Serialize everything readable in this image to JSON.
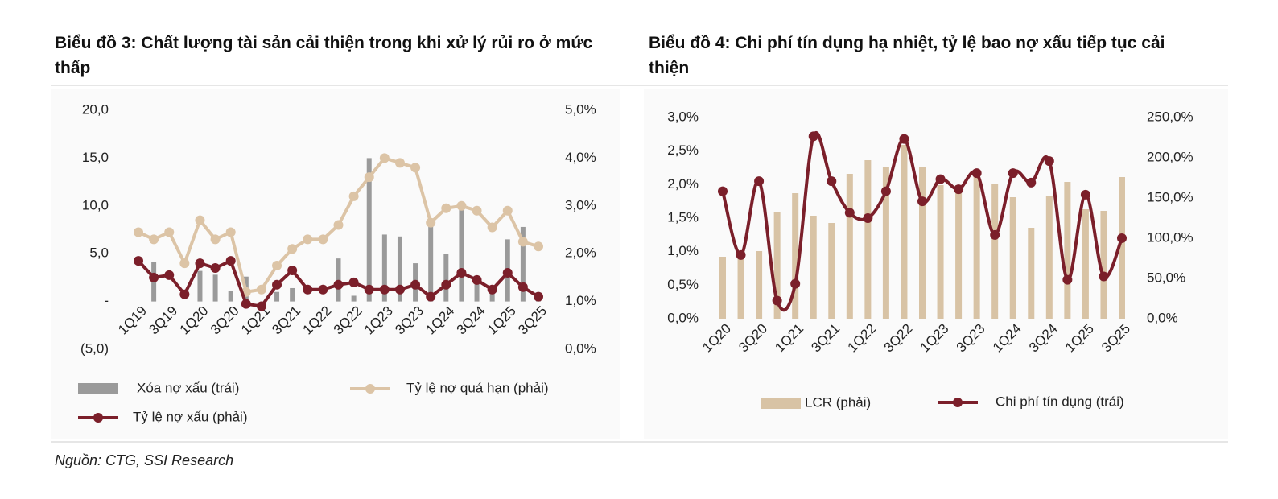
{
  "chart_data": [
    {
      "type": "combo",
      "title": "Biểu đồ 3: Chất lượng tài sản cải thiện trong khi xử lý rủi ro ở mức thấp",
      "categories": [
        "1Q19",
        null,
        "3Q19",
        null,
        "1Q20",
        null,
        "3Q20",
        null,
        "1Q21",
        null,
        "3Q21",
        null,
        "1Q22",
        null,
        "3Q22",
        null,
        "1Q23",
        null,
        "3Q23",
        null,
        "1Q24",
        null,
        "3Q24",
        null,
        "1Q25",
        null,
        "3Q25"
      ],
      "ylim": [
        -5,
        20
      ],
      "yticks": [
        {
          "value": -5,
          "label": "(5,0)"
        },
        {
          "value": 0,
          "label": "-"
        },
        {
          "value": 5,
          "label": "5,0"
        },
        {
          "value": 10,
          "label": "10,0"
        },
        {
          "value": 15,
          "label": "15,0"
        },
        {
          "value": 20,
          "label": "20,0"
        }
      ],
      "y2lim": [
        0,
        5
      ],
      "y2ticks": [
        {
          "value": 0,
          "label": "0,0%"
        },
        {
          "value": 1,
          "label": "1,0%"
        },
        {
          "value": 2,
          "label": "2,0%"
        },
        {
          "value": 3,
          "label": "3,0%"
        },
        {
          "value": 4,
          "label": "4,0%"
        },
        {
          "value": 5,
          "label": "5,0%"
        }
      ],
      "series": [
        {
          "name": "Xóa nợ xấu (trái)",
          "type": "bar",
          "axis": "y",
          "color": "#9a9a9a",
          "values": [
            0,
            4.1,
            0,
            0,
            3.2,
            2.8,
            1.1,
            2.6,
            0,
            1.0,
            1.4,
            0,
            0,
            4.5,
            0.6,
            15.0,
            7.0,
            6.8,
            4.0,
            7.9,
            5.0,
            9.7,
            2.0,
            1.0,
            6.5,
            7.8,
            0.5
          ]
        },
        {
          "name": "Tỷ lệ nợ quá hạn (phải)",
          "type": "line",
          "axis": "y2",
          "color": "#dcc4a6",
          "smooth": false,
          "values": [
            2.45,
            2.3,
            2.45,
            1.8,
            2.7,
            2.3,
            2.45,
            1.2,
            1.25,
            1.75,
            2.1,
            2.3,
            2.3,
            2.6,
            3.2,
            3.6,
            4.0,
            3.9,
            3.8,
            2.65,
            2.95,
            3.0,
            2.9,
            2.55,
            2.9,
            2.25,
            2.15
          ]
        },
        {
          "name": "Tỷ lệ nợ xấu (phải)",
          "type": "line",
          "axis": "y2",
          "color": "#7b1f2a",
          "smooth": false,
          "values": [
            1.85,
            1.5,
            1.55,
            1.15,
            1.8,
            1.7,
            1.85,
            0.95,
            0.9,
            1.35,
            1.65,
            1.25,
            1.25,
            1.35,
            1.4,
            1.25,
            1.25,
            1.25,
            1.35,
            1.1,
            1.35,
            1.6,
            1.45,
            1.25,
            1.6,
            1.3,
            1.1
          ]
        }
      ]
    },
    {
      "type": "combo",
      "title": "Biểu đồ 4: Chi phí tín dụng hạ nhiệt, tỷ lệ bao nợ xấu tiếp tục cải thiện",
      "categories": [
        "1Q20",
        null,
        "3Q20",
        null,
        "1Q21",
        null,
        "3Q21",
        null,
        "1Q22",
        null,
        "3Q22",
        null,
        "1Q23",
        null,
        "3Q23",
        null,
        "1Q24",
        null,
        "3Q24",
        null,
        "1Q25",
        null,
        "3Q25"
      ],
      "ylim": [
        0,
        3
      ],
      "yticks": [
        {
          "value": 0,
          "label": "0,0%"
        },
        {
          "value": 0.5,
          "label": "0,5%"
        },
        {
          "value": 1,
          "label": "1,0%"
        },
        {
          "value": 1.5,
          "label": "1,5%"
        },
        {
          "value": 2,
          "label": "2,0%"
        },
        {
          "value": 2.5,
          "label": "2,5%"
        },
        {
          "value": 3,
          "label": "3,0%"
        }
      ],
      "y2lim": [
        0,
        250
      ],
      "y2ticks": [
        {
          "value": 0,
          "label": "0,0%"
        },
        {
          "value": 50,
          "label": "50,0%"
        },
        {
          "value": 100,
          "label": "100,0%"
        },
        {
          "value": 150,
          "label": "150,0%"
        },
        {
          "value": 200,
          "label": "200,0%"
        },
        {
          "value": 250,
          "label": "250,0%"
        }
      ],
      "series": [
        {
          "name": "LCR (phải)",
          "type": "bar",
          "axis": "y2",
          "color": "#d8c3a5",
          "values": [
            77,
            78,
            84,
            132,
            156,
            128,
            119,
            180,
            197,
            189,
            216,
            188,
            166,
            166,
            177,
            167,
            151,
            113,
            153,
            170,
            136,
            134,
            176
          ]
        },
        {
          "name": "Chi phí tín dụng (trái)",
          "type": "line",
          "axis": "y",
          "color": "#7b1f2a",
          "smooth": true,
          "values": [
            1.9,
            0.95,
            2.05,
            0.27,
            0.52,
            2.72,
            2.05,
            1.58,
            1.5,
            1.9,
            2.68,
            1.75,
            2.08,
            1.93,
            2.17,
            1.25,
            2.17,
            2.03,
            2.35,
            0.58,
            1.85,
            0.63,
            1.2
          ]
        }
      ]
    }
  ],
  "source": "Nguồn: CTG, SSI Research"
}
